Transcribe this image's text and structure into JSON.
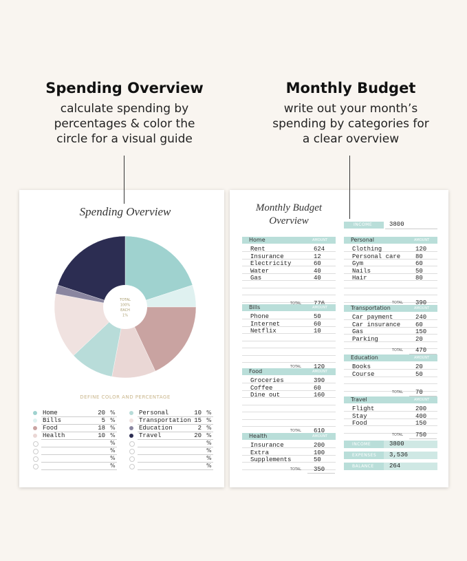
{
  "headings": [
    {
      "title": "Spending Overview",
      "lines": [
        "calculate spending by",
        "percentages & color the",
        "circle for a visual guide"
      ]
    },
    {
      "title": "Monthly Budget",
      "lines": [
        "write out your month’s",
        "spending by categories for",
        "a clear overview"
      ]
    }
  ],
  "spending": {
    "title": "Spending Overview",
    "center": [
      "TOTAL",
      "100%",
      "EACH",
      "1%"
    ],
    "define_label": "DEFINE COLOR AND PERCENTAGE",
    "percent_sign": "%",
    "items": [
      {
        "name": "Home",
        "value": 20,
        "color": "#9fd2cf"
      },
      {
        "name": "Bills",
        "value": 5,
        "color": "#dff1f0"
      },
      {
        "name": "Food",
        "value": 18,
        "color": "#c9a3a1"
      },
      {
        "name": "Health",
        "value": 10,
        "color": "#ead7d5"
      },
      {
        "name": "Personal",
        "value": 10,
        "color": "#b8dcd9"
      },
      {
        "name": "Transportation",
        "value": 15,
        "color": "#f0e2e0"
      },
      {
        "name": "Education",
        "value": 2,
        "color": "#8a86a0"
      },
      {
        "name": "Travel",
        "value": 20,
        "color": "#2c2d52"
      }
    ]
  },
  "budget": {
    "title": [
      "Monthly Budget",
      "Overview"
    ],
    "amount_label": "AMOUNT",
    "total_label": "TOTAL",
    "income": {
      "label": "INCOME",
      "value": 3800
    },
    "sections": [
      {
        "name": "Home",
        "rows": [
          [
            "Rent",
            624
          ],
          [
            "Insurance",
            12
          ],
          [
            "Electricity",
            60
          ],
          [
            "Water",
            40
          ],
          [
            "Gas",
            40
          ]
        ],
        "total": 776
      },
      {
        "name": "Bills",
        "rows": [
          [
            "Phone",
            50
          ],
          [
            "Internet",
            60
          ],
          [
            "Netflix",
            10
          ]
        ],
        "total": 120
      },
      {
        "name": "Food",
        "rows": [
          [
            "Groceries",
            390
          ],
          [
            "Coffee",
            60
          ],
          [
            "Dine out",
            160
          ]
        ],
        "total": 610
      },
      {
        "name": "Health",
        "rows": [
          [
            "Insurance",
            200
          ],
          [
            "Extra",
            100
          ],
          [
            "Supplements",
            50
          ]
        ],
        "total": 350
      },
      {
        "name": "Personal",
        "rows": [
          [
            "Clothing",
            120
          ],
          [
            "Personal care",
            80
          ],
          [
            "Gym",
            60
          ],
          [
            "Nails",
            50
          ],
          [
            "Hair",
            80
          ]
        ],
        "total": 390
      },
      {
        "name": "Transportation",
        "rows": [
          [
            "Car payment",
            240
          ],
          [
            "Car insurance",
            60
          ],
          [
            "Gas",
            150
          ],
          [
            "Parking",
            20
          ]
        ],
        "total": 470
      },
      {
        "name": "Education",
        "rows": [
          [
            "Books",
            20
          ],
          [
            "Course",
            50
          ]
        ],
        "total": 70
      },
      {
        "name": "Travel",
        "rows": [
          [
            "Flight",
            200
          ],
          [
            "Stay",
            400
          ],
          [
            "Food",
            150
          ]
        ],
        "total": 750
      }
    ],
    "summary": [
      {
        "label": "INCOME",
        "value": "3800"
      },
      {
        "label": "EXPENSES",
        "value": "3,536"
      },
      {
        "label": "BALANCE",
        "value": "264"
      }
    ]
  }
}
